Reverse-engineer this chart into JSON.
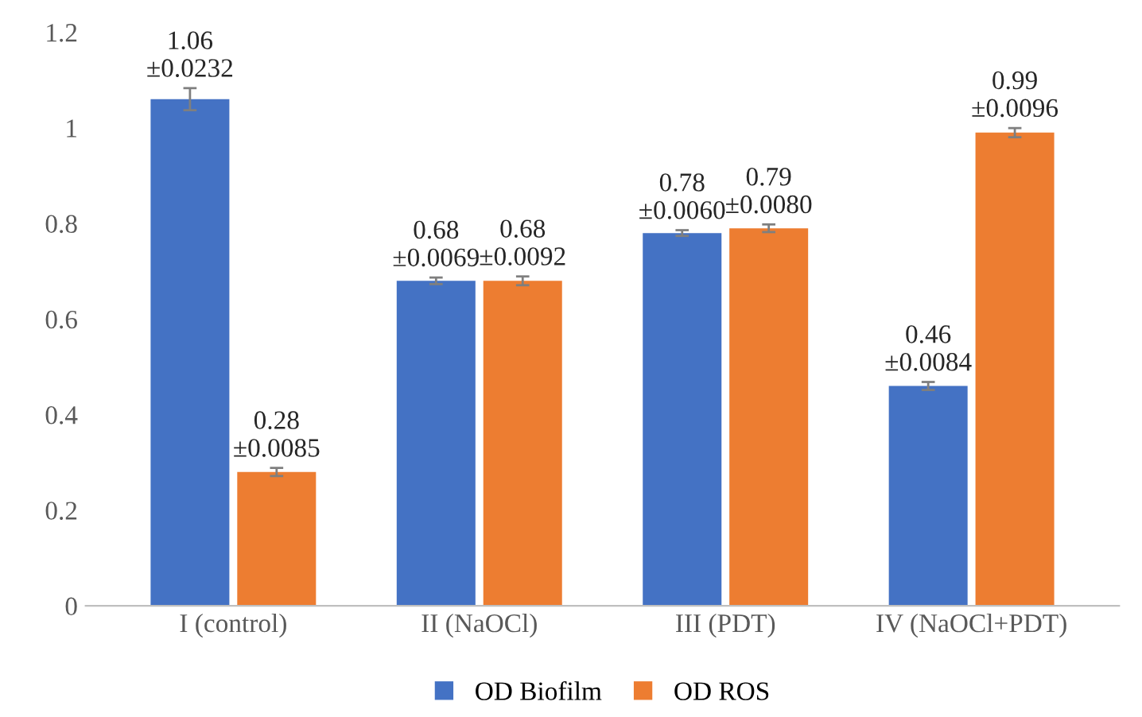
{
  "chart_data": {
    "type": "bar",
    "categories": [
      "I (control)",
      "II (NaOCl)",
      "III (PDT)",
      "IV (NaOCl+PDT)"
    ],
    "series": [
      {
        "name": "OD Biofilm",
        "color": "#4472c4",
        "values": [
          1.06,
          0.68,
          0.78,
          0.46
        ],
        "errors": [
          0.0232,
          0.0069,
          0.006,
          0.0084
        ],
        "value_labels": [
          "1.06\n±0.0232",
          "0.68\n±0.0069",
          "0.78\n±0.0060",
          "0.46\n±0.0084"
        ]
      },
      {
        "name": "OD ROS",
        "color": "#ed7d31",
        "values": [
          0.28,
          0.68,
          0.79,
          0.99
        ],
        "errors": [
          0.0085,
          0.0092,
          0.008,
          0.0096
        ],
        "value_labels": [
          "0.28\n±0.0085",
          "0.68\n±0.0092",
          "0.79\n±0.0080",
          "0.99\n±0.0096"
        ]
      }
    ],
    "ylim": [
      0,
      1.2
    ],
    "yticks": [
      0,
      0.2,
      0.4,
      0.6,
      0.8,
      1,
      1.2
    ],
    "grid": false,
    "legend": "bottom"
  }
}
